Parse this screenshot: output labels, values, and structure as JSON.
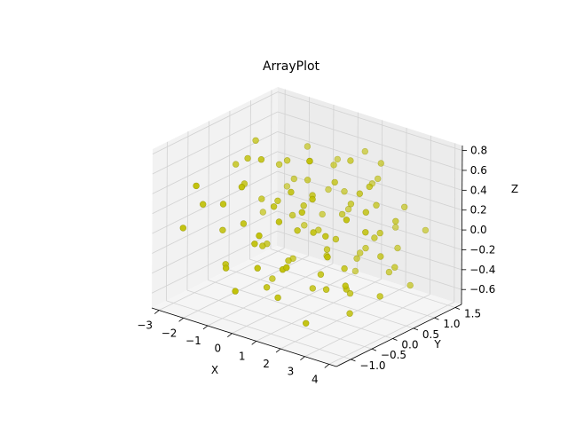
{
  "chart_data": {
    "type": "scatter",
    "projection": "3d",
    "title": "ArrayPlot",
    "xlabel": "X",
    "ylabel": "Y",
    "zlabel": "Z",
    "xlim": [
      -3.3,
      4.3
    ],
    "ylim": [
      -1.35,
      1.65
    ],
    "zlim": [
      -0.75,
      0.85
    ],
    "xticks": [
      -3,
      -2,
      -1,
      0,
      1,
      2,
      3,
      4
    ],
    "xtick_labels": [
      "−3",
      "−2",
      "−1",
      "0",
      "1",
      "2",
      "3",
      "4"
    ],
    "yticks": [
      -1.0,
      -0.5,
      0.0,
      0.5,
      1.0,
      1.5
    ],
    "ytick_labels": [
      "−1.0",
      "−0.5",
      "0.0",
      "0.5",
      "1.0",
      "1.5"
    ],
    "zticks": [
      -0.6,
      -0.4,
      -0.2,
      0.0,
      0.2,
      0.4,
      0.6,
      0.8
    ],
    "ztick_labels": [
      "−0.6",
      "−0.4",
      "−0.2",
      "0.0",
      "0.2",
      "0.4",
      "0.6",
      "0.8"
    ],
    "grid": true,
    "marker_color": "#bfbf00",
    "series": [
      {
        "points": [
          [
            -2.8,
            -0.9,
            0.0
          ],
          [
            -2.5,
            -0.6,
            0.2
          ],
          [
            -2.2,
            -0.3,
            -0.1
          ],
          [
            -2.0,
            0.1,
            0.3
          ],
          [
            -1.8,
            0.4,
            0.1
          ],
          [
            -1.6,
            0.7,
            0.4
          ],
          [
            -1.5,
            1.0,
            0.2
          ],
          [
            -1.3,
            1.2,
            0.5
          ],
          [
            -1.2,
            -0.8,
            -0.3
          ],
          [
            -1.0,
            -0.5,
            0.1
          ],
          [
            -0.9,
            -0.1,
            -0.2
          ],
          [
            -0.8,
            0.2,
            0.2
          ],
          [
            -0.7,
            0.5,
            0.0
          ],
          [
            -0.6,
            0.8,
            0.3
          ],
          [
            -0.5,
            1.1,
            -0.1
          ],
          [
            -0.4,
            1.4,
            0.4
          ],
          [
            -0.3,
            -1.1,
            -0.4
          ],
          [
            -0.2,
            -0.7,
            0.0
          ],
          [
            -0.1,
            -0.3,
            0.3
          ],
          [
            0.0,
            0.0,
            -0.3
          ],
          [
            0.1,
            0.3,
            0.2
          ],
          [
            0.2,
            0.6,
            -0.1
          ],
          [
            0.3,
            0.9,
            0.5
          ],
          [
            0.4,
            1.2,
            0.0
          ],
          [
            0.5,
            -1.0,
            0.2
          ],
          [
            0.6,
            -0.6,
            -0.5
          ],
          [
            0.7,
            -0.2,
            0.1
          ],
          [
            0.8,
            0.1,
            0.4
          ],
          [
            0.9,
            0.4,
            -0.2
          ],
          [
            1.0,
            0.7,
            0.1
          ],
          [
            1.1,
            1.0,
            -0.4
          ],
          [
            1.2,
            1.3,
            0.3
          ],
          [
            1.3,
            -0.9,
            -0.1
          ],
          [
            1.4,
            -0.5,
            0.4
          ],
          [
            1.5,
            -0.1,
            -0.3
          ],
          [
            1.6,
            0.2,
            0.0
          ],
          [
            1.7,
            0.5,
            0.3
          ],
          [
            1.8,
            0.8,
            -0.2
          ],
          [
            1.9,
            1.1,
            0.6
          ],
          [
            2.0,
            1.4,
            -0.1
          ],
          [
            2.1,
            -0.8,
            -0.6
          ],
          [
            2.2,
            -0.4,
            0.2
          ],
          [
            2.3,
            0.0,
            -0.2
          ],
          [
            2.4,
            0.3,
            0.5
          ],
          [
            2.5,
            0.6,
            0.0
          ],
          [
            2.6,
            0.9,
            -0.4
          ],
          [
            2.7,
            1.2,
            0.2
          ],
          [
            2.8,
            -0.7,
            0.1
          ],
          [
            2.9,
            -0.3,
            -0.3
          ],
          [
            3.0,
            0.1,
            0.4
          ],
          [
            3.1,
            0.4,
            -0.1
          ],
          [
            3.2,
            0.7,
            0.2
          ],
          [
            3.3,
            1.0,
            -0.5
          ],
          [
            3.4,
            1.3,
            0.0
          ],
          [
            3.5,
            -0.2,
            0.3
          ],
          [
            -2.6,
            0.9,
            -0.2
          ],
          [
            -2.3,
            1.3,
            0.0
          ],
          [
            -2.1,
            -1.0,
            0.5
          ],
          [
            -1.9,
            -0.4,
            -0.4
          ],
          [
            -1.7,
            0.0,
            0.6
          ],
          [
            -1.4,
            0.3,
            -0.3
          ],
          [
            -1.1,
            0.6,
            0.5
          ],
          [
            -0.9,
            0.9,
            -0.2
          ],
          [
            -0.6,
            1.3,
            0.1
          ],
          [
            -0.4,
            -0.9,
            0.6
          ],
          [
            -0.2,
            -0.4,
            -0.5
          ],
          [
            0.0,
            0.5,
            0.6
          ],
          [
            0.2,
            0.8,
            -0.4
          ],
          [
            0.4,
            1.1,
            0.2
          ],
          [
            0.6,
            -0.3,
            0.5
          ],
          [
            0.8,
            -0.7,
            0.3
          ],
          [
            1.0,
            0.0,
            -0.5
          ],
          [
            1.2,
            0.4,
            0.5
          ],
          [
            1.4,
            0.9,
            -0.3
          ],
          [
            1.6,
            1.2,
            0.4
          ],
          [
            1.8,
            -1.1,
            0.0
          ],
          [
            2.0,
            -0.6,
            0.6
          ],
          [
            2.2,
            0.2,
            -0.5
          ],
          [
            2.4,
            0.7,
            0.3
          ],
          [
            2.6,
            1.1,
            -0.2
          ],
          [
            2.8,
            0.3,
            0.6
          ],
          [
            3.0,
            0.8,
            -0.3
          ],
          [
            3.2,
            -0.5,
            -0.2
          ],
          [
            -2.4,
            0.6,
            0.6
          ],
          [
            -1.0,
            0.2,
            -0.6
          ],
          [
            0.1,
            -0.8,
            -0.2
          ],
          [
            0.9,
            1.3,
            0.6
          ],
          [
            1.9,
            -0.2,
            -0.4
          ],
          [
            2.9,
            0.5,
            0.1
          ],
          [
            3.6,
            0.1,
            -0.4
          ],
          [
            -0.8,
            -0.2,
            0.7
          ],
          [
            0.5,
            0.2,
            0.7
          ],
          [
            1.5,
            0.6,
            0.7
          ],
          [
            -2.7,
            0.3,
            0.4
          ],
          [
            3.4,
            -0.6,
            0.5
          ],
          [
            -1.5,
            -0.7,
            0.3
          ],
          [
            -0.5,
            0.4,
            -0.4
          ],
          [
            0.7,
            1.2,
            -0.6
          ],
          [
            1.7,
            -0.4,
            0.2
          ],
          [
            2.7,
            -0.1,
            -0.6
          ]
        ]
      }
    ]
  }
}
